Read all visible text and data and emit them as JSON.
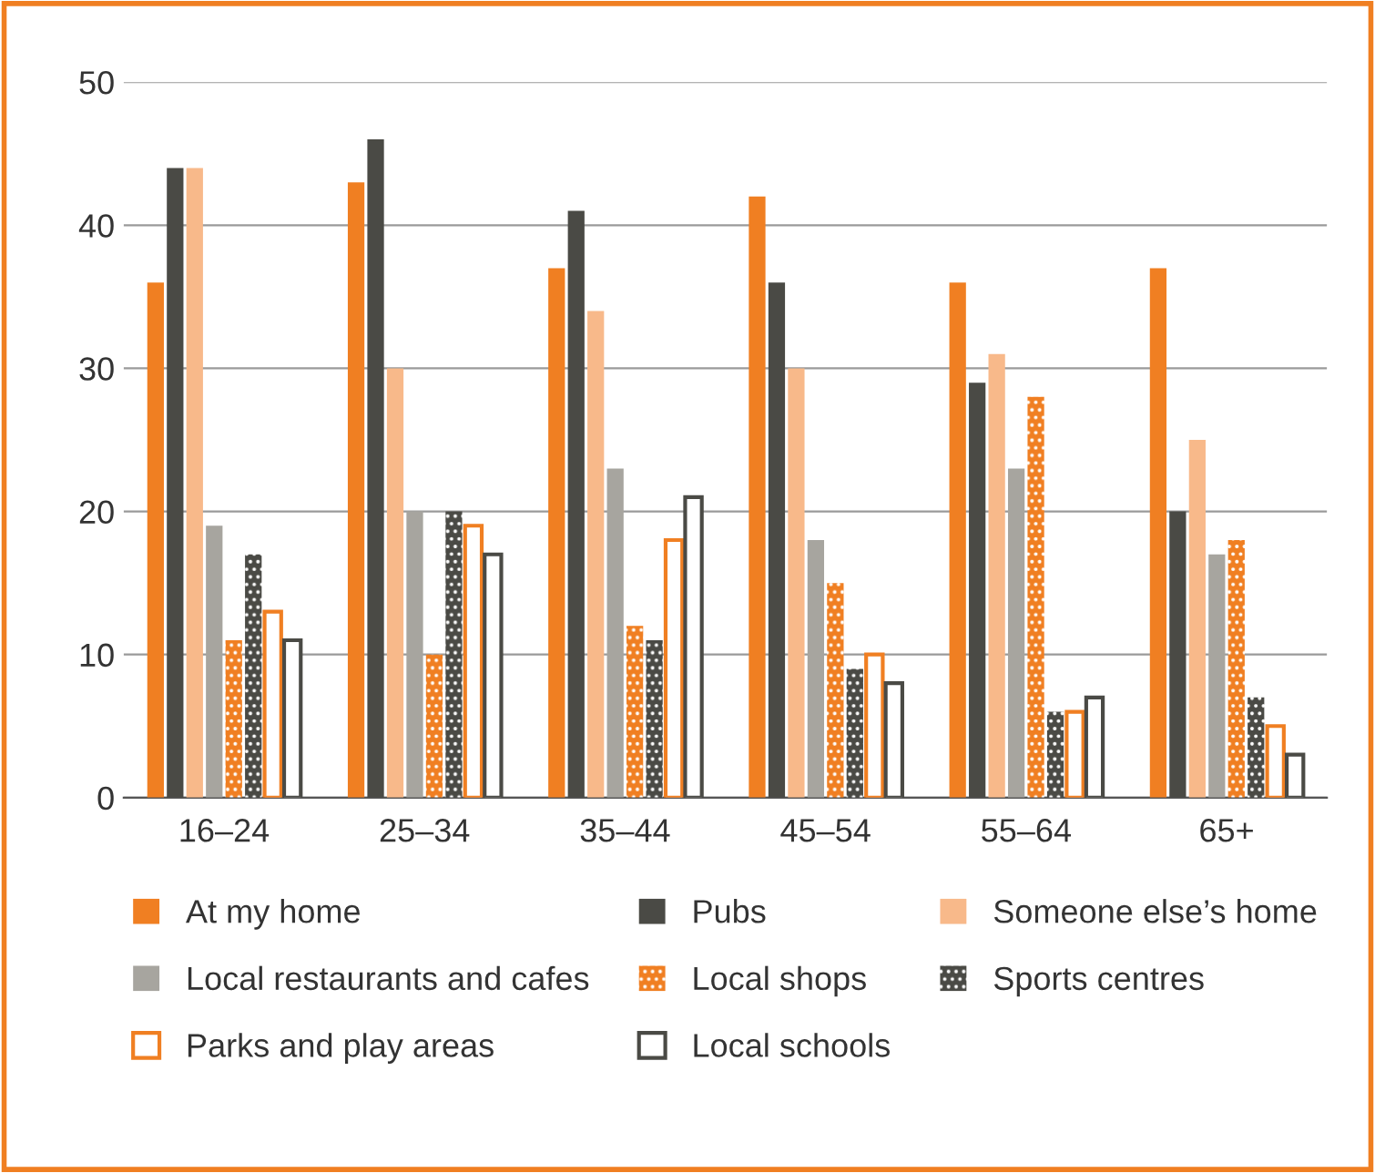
{
  "chart_data": {
    "type": "bar",
    "categories": [
      "16–24",
      "25–34",
      "35–44",
      "45–54",
      "55–64",
      "65+"
    ],
    "series": [
      {
        "name": "At my home",
        "color": "#f07f22",
        "values": [
          36,
          43,
          37,
          42,
          36,
          37
        ]
      },
      {
        "name": "Pubs",
        "color": "#4a4a45",
        "values": [
          44,
          46,
          41,
          36,
          29,
          20
        ]
      },
      {
        "name": "Someone else’s home",
        "color": "#f8b98a",
        "values": [
          44,
          30,
          34,
          30,
          31,
          25
        ]
      },
      {
        "name": "Local restaurants and cafes",
        "color": "#a7a59f",
        "values": [
          19,
          20,
          23,
          18,
          23,
          17
        ]
      },
      {
        "name": "Local shops",
        "color": "#f07f22",
        "values": [
          11,
          10,
          12,
          15,
          28,
          18
        ]
      },
      {
        "name": "Sports centres",
        "color": "#4a4a45",
        "values": [
          17,
          20,
          11,
          9,
          6,
          7
        ]
      },
      {
        "name": "Parks and play areas",
        "color": "#f07f22",
        "values": [
          13,
          19,
          18,
          10,
          6,
          5
        ]
      },
      {
        "name": "Local schools",
        "color": "#4a4a45",
        "values": [
          11,
          17,
          21,
          8,
          7,
          3
        ]
      }
    ],
    "ylim": [
      0,
      50
    ],
    "yticks": [
      0,
      10,
      20,
      30,
      40,
      50
    ],
    "grid": "y",
    "legend": "bottom"
  }
}
